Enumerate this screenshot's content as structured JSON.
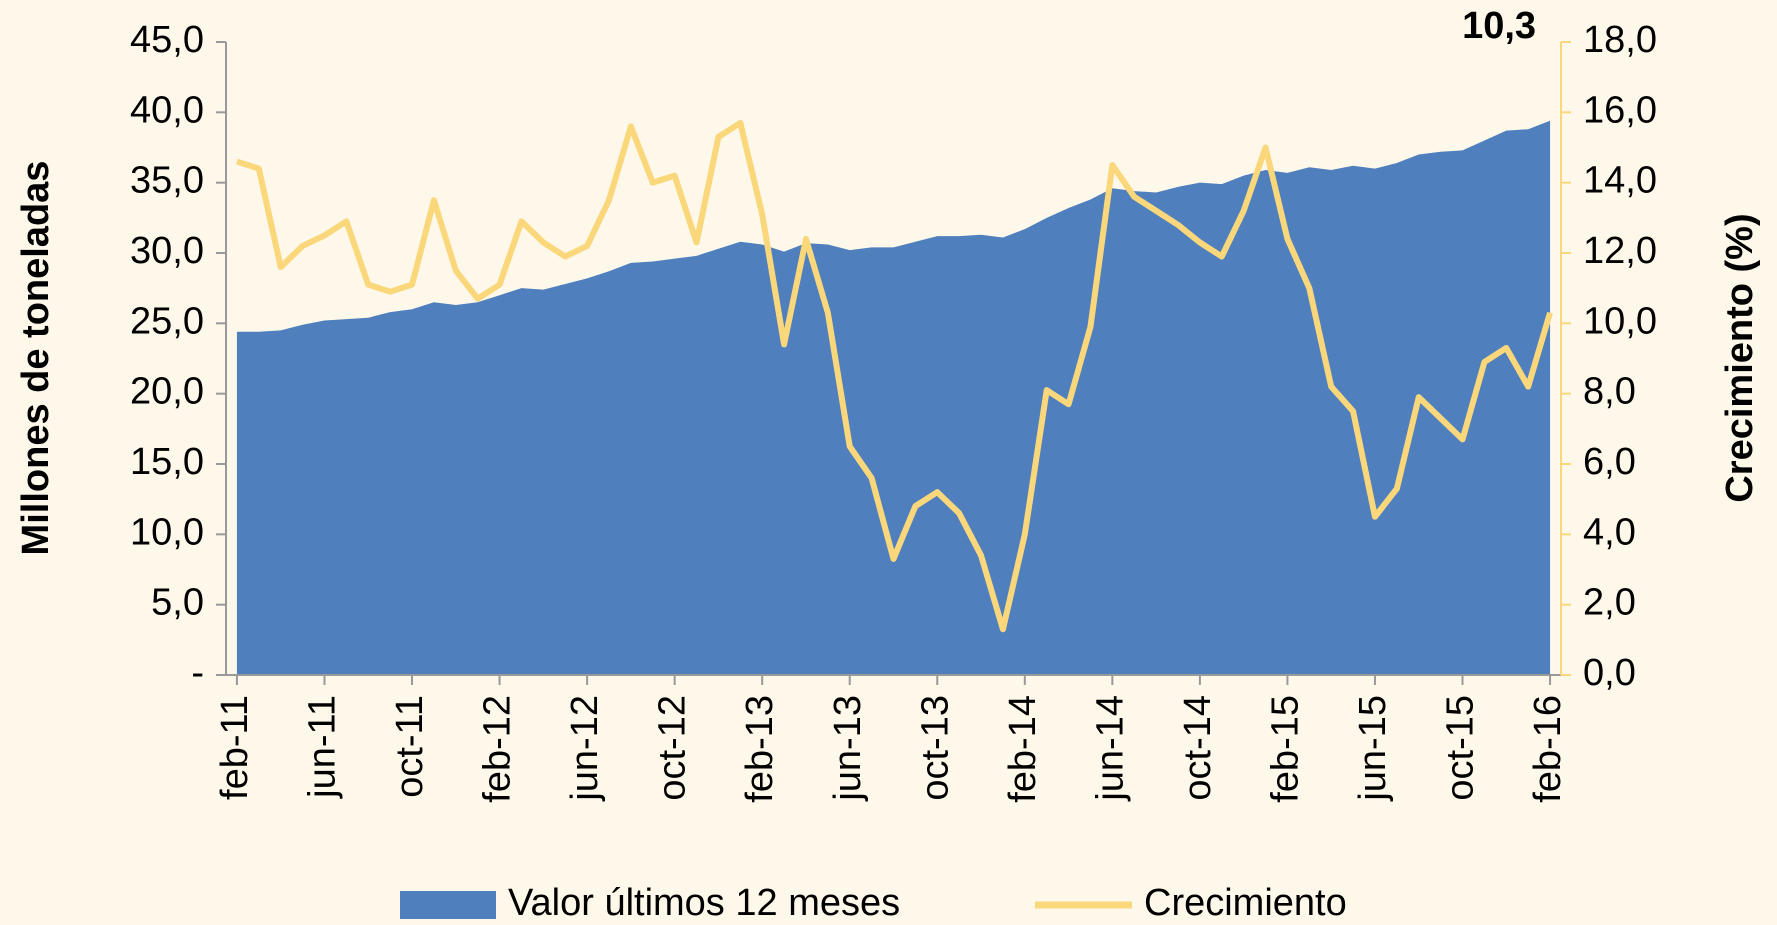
{
  "chart_data": {
    "type": "area-line",
    "y_label": "Millones de toneladas",
    "y2_label": "Crecimiento  (%)",
    "categories": [
      "feb-11",
      null,
      null,
      null,
      "jun-11",
      null,
      null,
      null,
      "oct-11",
      null,
      null,
      null,
      "feb-12",
      null,
      null,
      null,
      "jun-12",
      null,
      null,
      null,
      "oct-12",
      null,
      null,
      null,
      "feb-13",
      null,
      null,
      null,
      "jun-13",
      null,
      null,
      null,
      "oct-13",
      null,
      null,
      null,
      "feb-14",
      null,
      null,
      null,
      "jun-14",
      null,
      null,
      null,
      "oct-14",
      null,
      null,
      null,
      "feb-15",
      null,
      null,
      null,
      "jun-15",
      null,
      null,
      null,
      "oct-15",
      null,
      null,
      null,
      "feb-16"
    ],
    "series": [
      {
        "name": "Valor últimos 12 meses",
        "type": "area",
        "color": "#4f7fbd",
        "values": [
          24.4,
          24.4,
          24.5,
          24.9,
          25.2,
          25.3,
          25.4,
          25.8,
          26.0,
          26.5,
          26.3,
          26.5,
          27.0,
          27.5,
          27.4,
          27.8,
          28.2,
          28.7,
          29.3,
          29.4,
          29.6,
          29.8,
          30.3,
          30.8,
          30.6,
          30.1,
          30.7,
          30.6,
          30.2,
          30.4,
          30.4,
          30.8,
          31.2,
          31.2,
          31.3,
          31.1,
          31.7,
          32.5,
          33.2,
          33.8,
          34.6,
          34.4,
          34.3,
          34.7,
          35.0,
          34.9,
          35.5,
          35.9,
          35.7,
          36.1,
          35.9,
          36.2,
          36.0,
          36.4,
          37.0,
          37.2,
          37.3,
          38.0,
          38.7,
          38.8,
          39.4
        ]
      },
      {
        "name": "Crecimiento",
        "type": "line",
        "axis": "y2",
        "color": "#fbd77b",
        "values": [
          14.6,
          14.4,
          11.6,
          12.2,
          12.5,
          12.9,
          11.1,
          10.9,
          11.1,
          13.5,
          11.5,
          10.7,
          11.1,
          12.9,
          12.3,
          11.9,
          12.2,
          13.5,
          15.6,
          14.0,
          14.2,
          12.3,
          15.3,
          15.7,
          13.1,
          9.4,
          12.4,
          10.3,
          6.5,
          5.6,
          3.3,
          4.8,
          5.2,
          4.6,
          3.4,
          1.3,
          4.0,
          8.1,
          7.7,
          9.9,
          14.5,
          13.6,
          13.2,
          12.8,
          12.3,
          11.9,
          13.2,
          15.0,
          12.4,
          11.0,
          8.2,
          7.5,
          4.5,
          5.3,
          7.9,
          7.3,
          6.7,
          8.9,
          9.3,
          8.2,
          10.3
        ],
        "value_labels": [
          null,
          null,
          null,
          null,
          null,
          null,
          null,
          null,
          null,
          null,
          null,
          null,
          null,
          null,
          null,
          null,
          null,
          null,
          null,
          null,
          null,
          null,
          null,
          null,
          null,
          null,
          null,
          null,
          null,
          null,
          null,
          null,
          null,
          null,
          null,
          null,
          null,
          null,
          null,
          null,
          null,
          null,
          null,
          null,
          null,
          null,
          null,
          null,
          null,
          null,
          null,
          null,
          null,
          null,
          null,
          null,
          null,
          null,
          null,
          null,
          "10,3"
        ]
      }
    ],
    "ylim": [
      0,
      45
    ],
    "yticks": [
      {
        "value": 0,
        "label": "-"
      },
      {
        "value": 5,
        "label": "5,0"
      },
      {
        "value": 10,
        "label": "10,0"
      },
      {
        "value": 15,
        "label": "15,0"
      },
      {
        "value": 20,
        "label": "20,0"
      },
      {
        "value": 25,
        "label": "25,0"
      },
      {
        "value": 30,
        "label": "30,0"
      },
      {
        "value": 35,
        "label": "35,0"
      },
      {
        "value": 40,
        "label": "40,0"
      },
      {
        "value": 45,
        "label": "45,0"
      }
    ],
    "y2lim": [
      0,
      18
    ],
    "y2ticks": [
      {
        "value": 0,
        "label": "0,0"
      },
      {
        "value": 2,
        "label": "2,0"
      },
      {
        "value": 4,
        "label": "4,0"
      },
      {
        "value": 6,
        "label": "6,0"
      },
      {
        "value": 8,
        "label": "8,0"
      },
      {
        "value": 10,
        "label": "10,0"
      },
      {
        "value": 12,
        "label": "12,0"
      },
      {
        "value": 14,
        "label": "14,0"
      },
      {
        "value": 16,
        "label": "16,0"
      },
      {
        "value": 18,
        "label": "18,0"
      }
    ],
    "legend": "bottom"
  }
}
